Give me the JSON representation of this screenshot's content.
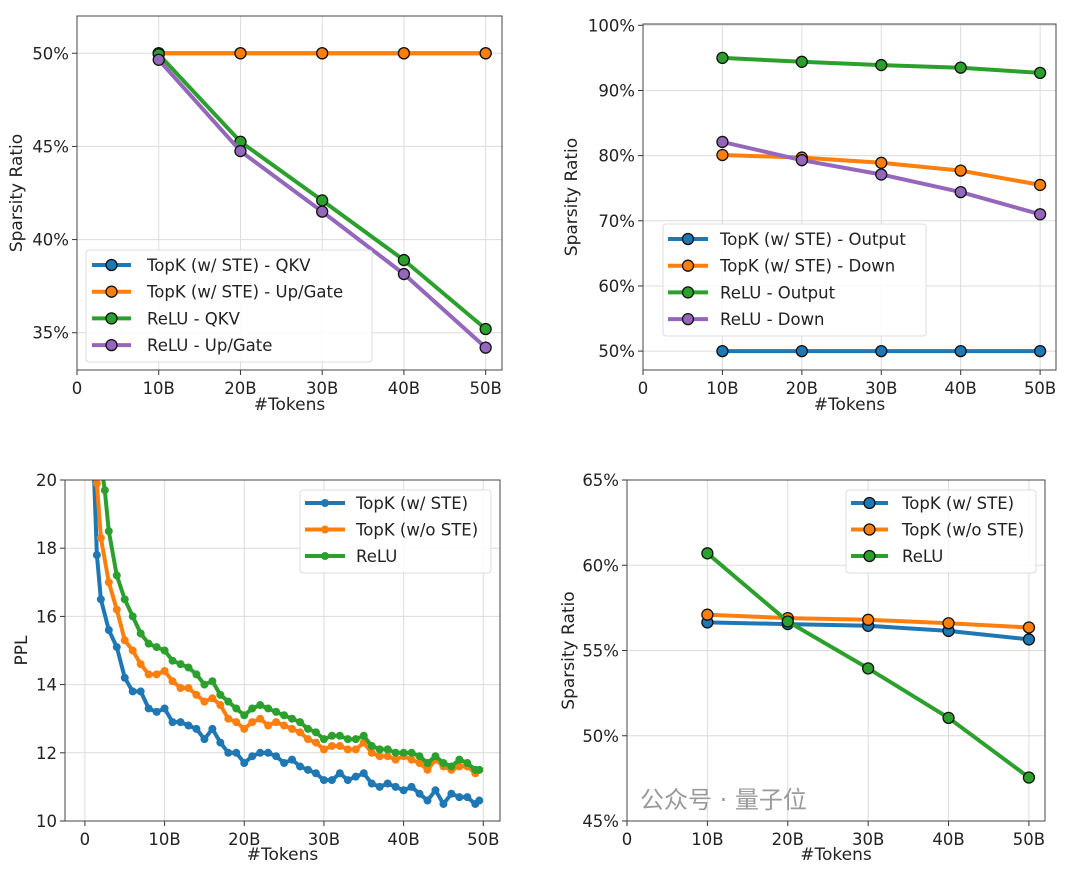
{
  "watermark": "公众号 · 量子位",
  "chart_data": [
    {
      "type": "line",
      "title": "",
      "xlabel": "#Tokens",
      "ylabel": "Sparsity Ratio",
      "xlim": [
        0,
        52
      ],
      "ylim": [
        33,
        52
      ],
      "grid": true,
      "legend": "lower-left",
      "xticks": [
        0,
        10,
        20,
        30,
        40,
        50
      ],
      "xticklabels": [
        "0",
        "10B",
        "20B",
        "30B",
        "40B",
        "50B"
      ],
      "yticks": [
        35,
        40,
        45,
        50
      ],
      "yticklabels": [
        "35%",
        "40%",
        "45%",
        "50%"
      ],
      "marker_edge": true,
      "series": [
        {
          "name": "TopK (w/ STE) - QKV",
          "color": "#1f77b4",
          "x": [
            10,
            20,
            30,
            40,
            50
          ],
          "y": [
            50,
            50,
            50,
            50,
            50
          ]
        },
        {
          "name": "TopK (w/ STE) - Up/Gate",
          "color": "#ff7f0e",
          "x": [
            10,
            20,
            30,
            40,
            50
          ],
          "y": [
            50,
            50,
            50,
            50,
            50
          ]
        },
        {
          "name": "ReLU - QKV",
          "color": "#2ca02c",
          "x": [
            10,
            20,
            30,
            40,
            50
          ],
          "y": [
            49.95,
            45.25,
            42.1,
            38.9,
            35.2
          ]
        },
        {
          "name": "ReLU - Up/Gate",
          "color": "#9467bd",
          "x": [
            10,
            20,
            30,
            40,
            50
          ],
          "y": [
            49.65,
            44.75,
            41.5,
            38.15,
            34.2
          ]
        }
      ]
    },
    {
      "type": "line",
      "title": "",
      "xlabel": "#Tokens",
      "ylabel": "Sparsity Ratio",
      "xlim": [
        0,
        52
      ],
      "ylim": [
        47.1,
        100.2
      ],
      "grid": true,
      "legend": "center-left",
      "xticks": [
        0,
        10,
        20,
        30,
        40,
        50
      ],
      "xticklabels": [
        "0",
        "10B",
        "20B",
        "30B",
        "40B",
        "50B"
      ],
      "yticks": [
        50,
        60,
        70,
        80,
        90,
        100
      ],
      "yticklabels": [
        "50%",
        "60%",
        "70%",
        "80%",
        "90%",
        "100%"
      ],
      "marker_edge": true,
      "series": [
        {
          "name": "TopK (w/ STE) - Output",
          "color": "#1f77b4",
          "x": [
            10,
            20,
            30,
            40,
            50
          ],
          "y": [
            50,
            50,
            50,
            50,
            50
          ]
        },
        {
          "name": "TopK (w/ STE) - Down",
          "color": "#ff7f0e",
          "x": [
            10,
            20,
            30,
            40,
            50
          ],
          "y": [
            80.1,
            79.7,
            78.9,
            77.7,
            75.5
          ]
        },
        {
          "name": "ReLU - Output",
          "color": "#2ca02c",
          "x": [
            10,
            20,
            30,
            40,
            50
          ],
          "y": [
            95.0,
            94.4,
            93.9,
            93.5,
            92.7
          ]
        },
        {
          "name": "ReLU - Down",
          "color": "#9467bd",
          "x": [
            10,
            20,
            30,
            40,
            50
          ],
          "y": [
            82.1,
            79.3,
            77.1,
            74.4,
            71.0
          ]
        }
      ]
    },
    {
      "type": "line",
      "title": "",
      "xlabel": "#Tokens",
      "ylabel": "PPL",
      "xlim": [
        -2.5,
        52.1
      ],
      "ylim": [
        10,
        20
      ],
      "grid": true,
      "legend": "upper-right",
      "xticks": [
        0,
        10,
        20,
        30,
        40,
        50
      ],
      "xticklabels": [
        "0",
        "10B",
        "20B",
        "30B",
        "40B",
        "50B"
      ],
      "yticks": [
        10,
        12,
        14,
        16,
        18,
        20
      ],
      "yticklabels": [
        "10",
        "12",
        "14",
        "16",
        "18",
        "20"
      ],
      "marker_edge": false,
      "series": [
        {
          "name": "TopK (w/ STE)",
          "color": "#1f77b4",
          "x": [
            1,
            1.5,
            2,
            3,
            4,
            5,
            6,
            7,
            8,
            9,
            10,
            11,
            12,
            13,
            14,
            15,
            16,
            17,
            18,
            19,
            20,
            21,
            22,
            23,
            24,
            25,
            26,
            27,
            28,
            29,
            30,
            31,
            32,
            33,
            34,
            35,
            36,
            37,
            38,
            39,
            40,
            41,
            42,
            43,
            44,
            45,
            46,
            47,
            48,
            49,
            49.5
          ],
          "y": [
            21,
            17.8,
            16.5,
            15.6,
            15.1,
            14.2,
            13.8,
            13.8,
            13.3,
            13.2,
            13.3,
            12.9,
            12.9,
            12.8,
            12.7,
            12.4,
            12.7,
            12.3,
            12.0,
            12.0,
            11.7,
            11.9,
            12.0,
            12.0,
            11.9,
            11.7,
            11.8,
            11.6,
            11.5,
            11.4,
            11.2,
            11.2,
            11.4,
            11.2,
            11.3,
            11.4,
            11.1,
            11.0,
            11.1,
            11.0,
            10.9,
            11.0,
            10.8,
            10.6,
            10.9,
            10.5,
            10.8,
            10.7,
            10.7,
            10.5,
            10.6
          ]
        },
        {
          "name": "TopK (w/o STE)",
          "color": "#ff7f0e",
          "x": [
            1,
            1.5,
            2,
            3,
            4,
            5,
            6,
            7,
            8,
            9,
            10,
            11,
            12,
            13,
            14,
            15,
            16,
            17,
            18,
            19,
            20,
            21,
            22,
            23,
            24,
            25,
            26,
            27,
            28,
            29,
            30,
            31,
            32,
            33,
            34,
            35,
            36,
            37,
            38,
            39,
            40,
            41,
            42,
            43,
            44,
            45,
            46,
            47,
            48,
            49,
            49.5
          ],
          "y": [
            21,
            19.9,
            18.3,
            17.0,
            16.2,
            15.3,
            15.0,
            14.6,
            14.3,
            14.3,
            14.4,
            14.1,
            13.9,
            13.9,
            13.7,
            13.5,
            13.6,
            13.4,
            13.0,
            12.9,
            12.7,
            12.9,
            13.0,
            12.8,
            12.9,
            12.8,
            12.7,
            12.6,
            12.4,
            12.3,
            12.1,
            12.2,
            12.2,
            12.1,
            12.1,
            12.3,
            12.0,
            11.9,
            11.9,
            11.8,
            11.9,
            11.8,
            11.7,
            11.5,
            11.8,
            11.6,
            11.5,
            11.6,
            11.6,
            11.4,
            11.5
          ]
        },
        {
          "name": "ReLU",
          "color": "#2ca02c",
          "x": [
            2,
            2.5,
            3,
            4,
            5,
            6,
            7,
            8,
            9,
            10,
            11,
            12,
            13,
            14,
            15,
            16,
            17,
            18,
            19,
            20,
            21,
            22,
            23,
            24,
            25,
            26,
            27,
            28,
            29,
            30,
            31,
            32,
            33,
            34,
            35,
            36,
            37,
            38,
            39,
            40,
            41,
            42,
            43,
            44,
            45,
            46,
            47,
            48,
            49,
            49.5
          ],
          "y": [
            20.5,
            19.7,
            18.5,
            17.2,
            16.5,
            16.0,
            15.5,
            15.2,
            15.1,
            15.0,
            14.7,
            14.6,
            14.5,
            14.3,
            14.0,
            14.1,
            13.7,
            13.5,
            13.3,
            13.1,
            13.3,
            13.4,
            13.3,
            13.2,
            13.1,
            13.0,
            12.9,
            12.7,
            12.6,
            12.4,
            12.5,
            12.5,
            12.4,
            12.4,
            12.5,
            12.2,
            12.1,
            12.1,
            12.0,
            12.0,
            12.0,
            11.9,
            11.7,
            11.9,
            11.7,
            11.6,
            11.8,
            11.7,
            11.5,
            11.5
          ]
        }
      ]
    },
    {
      "type": "line",
      "title": "",
      "xlabel": "#Tokens",
      "ylabel": "Sparsity Ratio",
      "xlim": [
        0,
        52
      ],
      "ylim": [
        45,
        65
      ],
      "grid": true,
      "legend": "upper-right",
      "xticks": [
        0,
        10,
        20,
        30,
        40,
        50
      ],
      "xticklabels": [
        "0",
        "10B",
        "20B",
        "30B",
        "40B",
        "50B"
      ],
      "yticks": [
        45,
        50,
        55,
        60,
        65
      ],
      "yticklabels": [
        "45%",
        "50%",
        "55%",
        "60%",
        "65%"
      ],
      "marker_edge": true,
      "series": [
        {
          "name": "TopK (w/ STE)",
          "color": "#1f77b4",
          "x": [
            10,
            20,
            30,
            40,
            50
          ],
          "y": [
            56.65,
            56.55,
            56.45,
            56.15,
            55.65
          ]
        },
        {
          "name": "TopK (w/o STE)",
          "color": "#ff7f0e",
          "x": [
            10,
            20,
            30,
            40,
            50
          ],
          "y": [
            57.1,
            56.9,
            56.8,
            56.6,
            56.35
          ]
        },
        {
          "name": "ReLU",
          "color": "#2ca02c",
          "x": [
            10,
            20,
            30,
            40,
            50
          ],
          "y": [
            60.7,
            56.7,
            53.95,
            51.05,
            47.55
          ]
        }
      ]
    }
  ]
}
